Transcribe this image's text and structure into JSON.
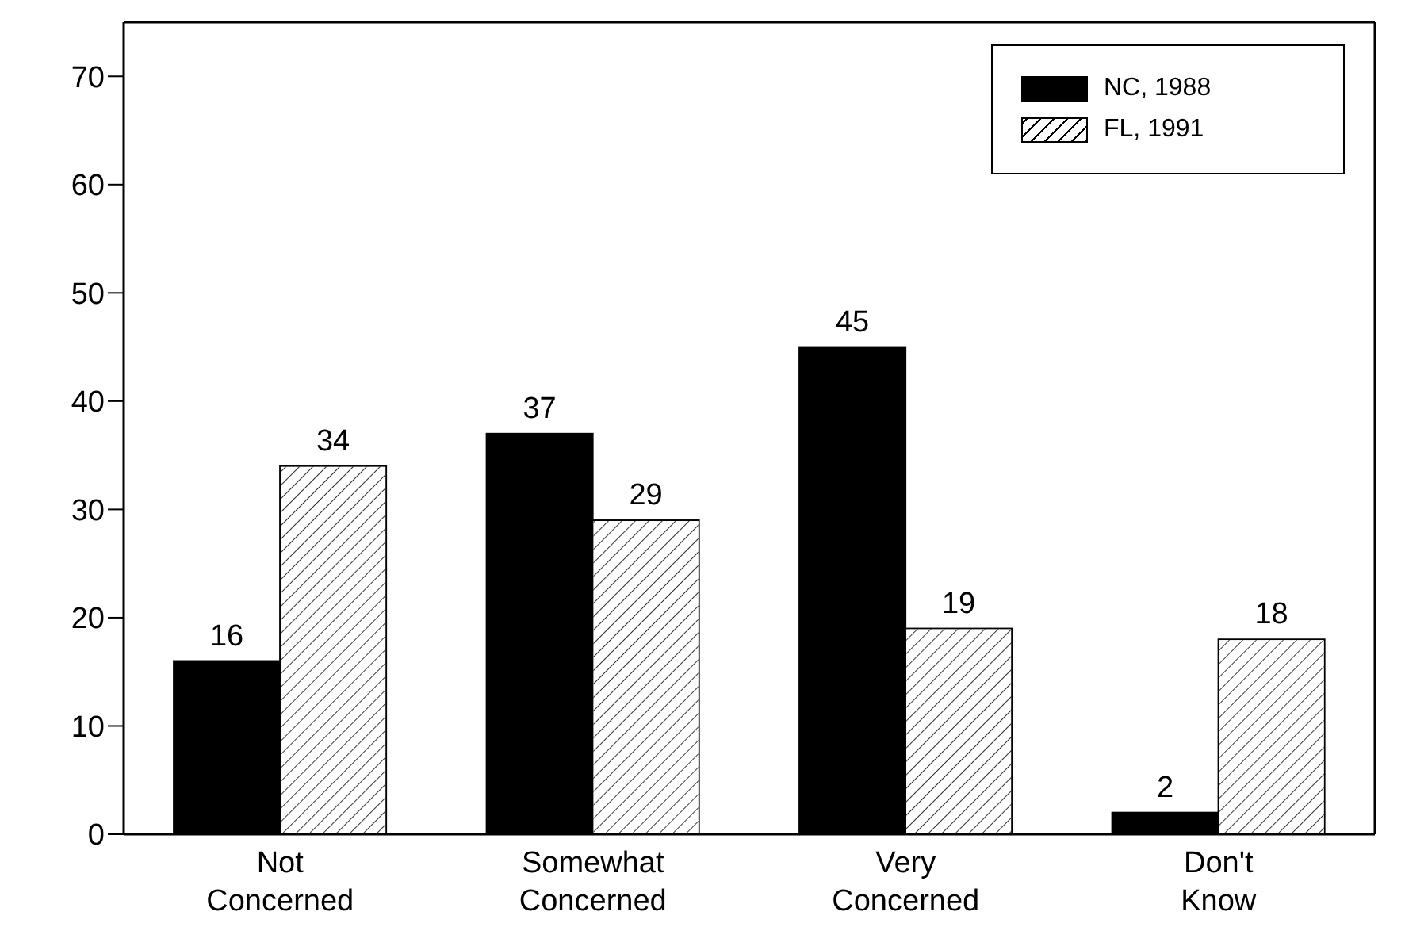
{
  "chart_data": {
    "type": "bar",
    "categories": [
      "Not Concerned",
      "Somewhat Concerned",
      "Very Concerned",
      "Don't Know"
    ],
    "series": [
      {
        "name": "NC, 1988",
        "color": "#000000",
        "values": [
          16,
          37,
          45,
          2
        ]
      },
      {
        "name": "FL, 1991",
        "color": "#ffffff",
        "values": [
          34,
          29,
          19,
          18
        ]
      }
    ],
    "ylim": [
      0,
      75
    ],
    "yticks": [
      0,
      10,
      20,
      30,
      40,
      50,
      60,
      70
    ],
    "grid": false,
    "legend": "top right",
    "data_labels": true
  }
}
